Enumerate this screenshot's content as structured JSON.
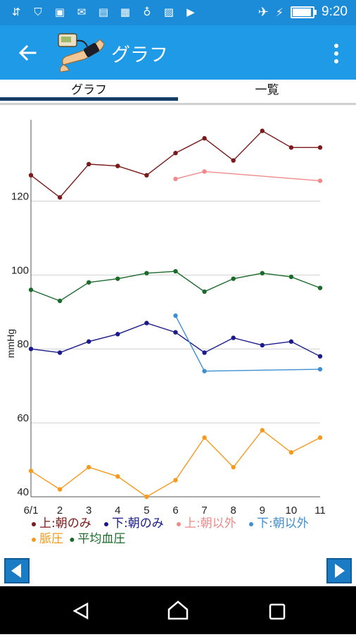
{
  "statusbar": {
    "time": "9:20",
    "battery_level": 0.85
  },
  "appbar": {
    "title": "グラフ"
  },
  "tabs": [
    {
      "label": "グラフ",
      "selected": true
    },
    {
      "label": "一覧",
      "selected": false
    }
  ],
  "colors": {
    "appbar": "#1f9ae6",
    "statusbar": "#1c8cd9",
    "sys_upper_morning": "#7a1a1a",
    "dia_morning": "#1a1a8c",
    "sys_other": "#f08a8a",
    "dia_other": "#3f8fd0",
    "pulse": "#f59a1f",
    "mean": "#1a6b2a"
  },
  "chart_data": {
    "type": "line",
    "ylabel": "mmHg",
    "xlabel": "",
    "categories": [
      "6/1",
      "2",
      "3",
      "4",
      "5",
      "6",
      "7",
      "8",
      "9",
      "10",
      "11"
    ],
    "y_ticks": [
      40,
      60,
      80,
      100,
      120
    ],
    "ylim": [
      40,
      142
    ],
    "grid": true,
    "legend": "bottom",
    "series": [
      {
        "name": "上:朝のみ",
        "color": "#7a1a1a",
        "points": [
          [
            0,
            127
          ],
          [
            1,
            121
          ],
          [
            2,
            130
          ],
          [
            3,
            129.5
          ],
          [
            4,
            127
          ],
          [
            5,
            133
          ],
          [
            6,
            137
          ],
          [
            7,
            131
          ],
          [
            8,
            139
          ],
          [
            9,
            134.5
          ],
          [
            10,
            134.5
          ]
        ]
      },
      {
        "name": "下:朝のみ",
        "color": "#1a1a8c",
        "points": [
          [
            0,
            80
          ],
          [
            1,
            79
          ],
          [
            2,
            82
          ],
          [
            3,
            84
          ],
          [
            4,
            87
          ],
          [
            5,
            84.5
          ],
          [
            6,
            79
          ],
          [
            7,
            83
          ],
          [
            8,
            81
          ],
          [
            9,
            82
          ],
          [
            10,
            78
          ]
        ]
      },
      {
        "name": "上:朝以外",
        "color": "#f08a8a",
        "points": [
          [
            5,
            126
          ],
          [
            6,
            128
          ],
          [
            10,
            125.5
          ]
        ]
      },
      {
        "name": "下:朝以外",
        "color": "#3f8fd0",
        "points": [
          [
            5,
            89
          ],
          [
            6,
            74
          ],
          [
            10,
            74.5
          ]
        ]
      },
      {
        "name": "脈圧",
        "color": "#f59a1f",
        "points": [
          [
            0,
            47
          ],
          [
            1,
            42
          ],
          [
            2,
            48
          ],
          [
            3,
            45.5
          ],
          [
            4,
            40
          ],
          [
            5,
            44.5
          ],
          [
            6,
            56
          ],
          [
            7,
            48
          ],
          [
            8,
            58
          ],
          [
            9,
            52
          ],
          [
            10,
            56
          ]
        ]
      },
      {
        "name": "平均血圧",
        "color": "#1a6b2a",
        "points": [
          [
            0,
            96
          ],
          [
            1,
            93
          ],
          [
            2,
            98
          ],
          [
            3,
            99
          ],
          [
            4,
            100.5
          ],
          [
            5,
            101
          ],
          [
            6,
            95.5
          ],
          [
            7,
            99
          ],
          [
            8,
            100.5
          ],
          [
            9,
            99.5
          ],
          [
            10,
            96.5
          ]
        ]
      }
    ]
  }
}
